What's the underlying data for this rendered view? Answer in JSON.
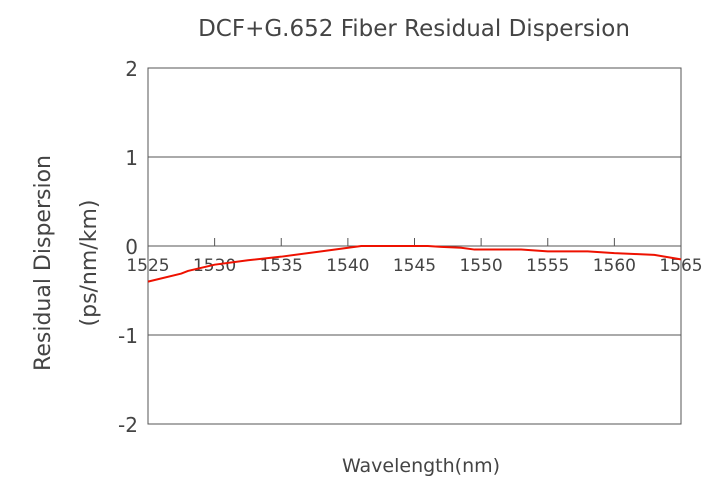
{
  "chart_data": {
    "type": "line",
    "title": "DCF+G.652 Fiber Residual Dispersion",
    "xlabel": "Wavelength(nm)",
    "ylabel": [
      "Residual Dispersion",
      "(ps/nm/km)"
    ],
    "xlim": [
      1525,
      1565
    ],
    "ylim": [
      -2,
      2
    ],
    "xticks": [
      "1525",
      "1530",
      "1535",
      "1540",
      "1545",
      "1550",
      "1555",
      "1560",
      "1565"
    ],
    "yticks": [
      "2",
      "1",
      "0",
      "-1",
      "-2"
    ],
    "grid": "horizontal",
    "series_color": "#ee1100",
    "x": [
      1525,
      1527.5,
      1528,
      1530,
      1532.5,
      1535,
      1538,
      1541,
      1546,
      1547,
      1548.5,
      1549.5,
      1553,
      1555,
      1558,
      1560,
      1561.5,
      1563,
      1565
    ],
    "y": [
      -0.4,
      -0.31,
      -0.28,
      -0.21,
      -0.16,
      -0.12,
      -0.06,
      0,
      0,
      -0.01,
      -0.02,
      -0.04,
      -0.04,
      -0.06,
      -0.06,
      -0.08,
      -0.09,
      -0.1,
      -0.15
    ]
  }
}
